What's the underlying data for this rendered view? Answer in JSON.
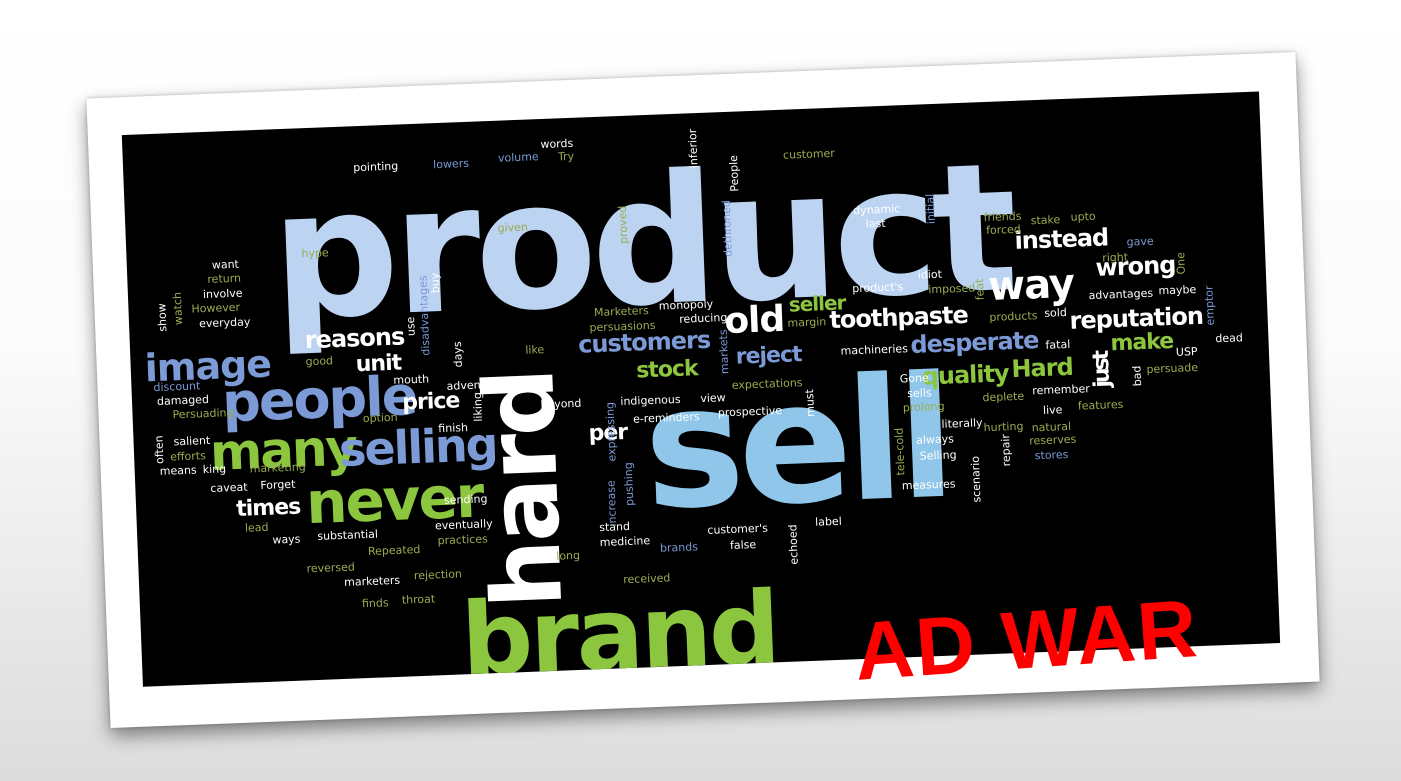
{
  "title": "AD WAR",
  "colors": {
    "title": "#ff0000",
    "background": "#000000",
    "pale_blue": "#bcd3f2",
    "green": "#8cc63e",
    "blue": "#7b9ad6",
    "white": "#ffffff",
    "olive": "#9aad52"
  },
  "words": {
    "product": "product",
    "sell": "sell",
    "hard": "hard",
    "brand": "brand",
    "never": "never",
    "people": "people",
    "many": "many",
    "selling": "selling",
    "image": "image",
    "old": "old",
    "way": "way",
    "customers": "customers",
    "toothpaste": "toothpaste",
    "reputation": "reputation",
    "quality": "quality",
    "desperate": "desperate",
    "instead": "instead",
    "wrong": "wrong",
    "make": "make",
    "reasons": "reasons",
    "unit": "unit",
    "reject": "reject",
    "stock": "stock",
    "price": "price",
    "times": "times",
    "seller": "seller",
    "per": "per",
    "just": "just",
    "hard_small": "Hard",
    "pointing": "pointing",
    "lowers": "lowers",
    "volume": "volume",
    "words": "words",
    "try": "Try",
    "inferior": "inferior",
    "people_small": "People",
    "customer": "customer",
    "dynamic": "dynamic",
    "last": "last",
    "initial": "initial",
    "friends": "friends",
    "forced": "forced",
    "stake": "stake",
    "upto": "upto",
    "gave": "gave",
    "right": "right",
    "one": "One",
    "want": "want",
    "return": "return",
    "involve": "involve",
    "however": "However",
    "everyday": "everyday",
    "show": "show",
    "watch": "watch",
    "hype": "hype",
    "given": "given",
    "proved": "proved",
    "dethroned": "dethroned",
    "buy": "buy",
    "disadvantages": "disadvantages",
    "use": "use",
    "good": "good",
    "days": "days",
    "discount": "discount",
    "damaged": "damaged",
    "persuading": "Persuading",
    "mouth": "mouth",
    "advent": "advent",
    "marketers_cap": "Marketers",
    "monopoly": "monopoly",
    "persuasions": "persuasions",
    "reducing": "reducing",
    "margin": "margin",
    "products_cap": "product's",
    "idiot": "idiot",
    "imposed": "imposed",
    "feat": "feat",
    "products": "products",
    "sold": "sold",
    "advantages": "advantages",
    "maybe": "maybe",
    "emptor": "emptor",
    "dead": "dead",
    "like": "like",
    "markets": "markets",
    "machineries": "machineries",
    "fatal": "fatal",
    "usp": "USP",
    "option": "option",
    "beyond": "beyond",
    "indigenous": "indigenous",
    "view": "view",
    "expectations": "expectations",
    "must": "must",
    "prospective": "prospective",
    "sells": "sells",
    "prolong": "prolong",
    "deplete": "deplete",
    "remember": "remember",
    "bad": "bad",
    "persuade": "persuade",
    "salient": "salient",
    "often": "often",
    "efforts": "efforts",
    "means": "means",
    "king": "king",
    "finish": "finish",
    "liking": "liking",
    "expressing": "expressing",
    "e_reminders": "e-reminders",
    "gone": "Gone",
    "literally": "literally",
    "live": "live",
    "features": "features",
    "marketing": "marketing",
    "caveat": "caveat",
    "forget": "Forget",
    "tele_cold": "tele-cold",
    "always": "always",
    "hurting": "hurting",
    "natural": "natural",
    "selling_cap": "Selling",
    "repair": "repair",
    "reserves": "reserves",
    "stores": "stores",
    "lead": "lead",
    "sending": "sending",
    "increase": "increase",
    "pushing": "pushing",
    "scenario": "scenario",
    "measures": "measures",
    "ways": "ways",
    "substantial": "substantial",
    "eventually": "eventually",
    "repeated": "Repeated",
    "practices": "practices",
    "stand": "stand",
    "medicine": "medicine",
    "customers_poss": "customer's",
    "echoed": "echoed",
    "label": "label",
    "reversed": "reversed",
    "marketers": "marketers",
    "rejection": "rejection",
    "long": "long",
    "brands": "brands",
    "false": "false",
    "finds": "finds",
    "throat": "throat",
    "received": "received"
  }
}
